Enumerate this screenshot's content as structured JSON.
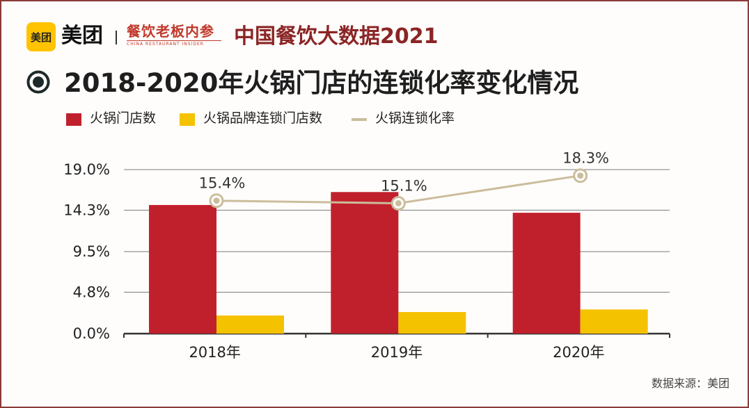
{
  "header": {
    "logo_badge": "美团",
    "logo_text": "美团",
    "brand2_main": "餐饮老板内参",
    "brand2_sub": "CHINA RESTAURANT INSIDER",
    "title": "中国餐饮大数据2021"
  },
  "chart_data": {
    "type": "bar",
    "title": "2018-2020年火锅门店的连锁化率变化情况",
    "categories": [
      "2018年",
      "2019年",
      "2020年"
    ],
    "series": [
      {
        "name": "火锅门店数",
        "kind": "bar",
        "color": "#c0202c",
        "values": [
          14.9,
          16.4,
          14.0
        ]
      },
      {
        "name": "火锅品牌连锁门店数",
        "kind": "bar",
        "color": "#f5c200",
        "values": [
          2.1,
          2.5,
          2.8
        ]
      },
      {
        "name": "火锅连锁化率",
        "kind": "line",
        "color": "#cbbd9c",
        "values": [
          15.4,
          15.1,
          18.3
        ],
        "labels": [
          "15.4%",
          "15.1%",
          "18.3%"
        ]
      }
    ],
    "yticks": [
      0.0,
      4.8,
      9.5,
      14.3,
      19.0
    ],
    "ytick_labels": [
      "0.0%",
      "4.8%",
      "9.5%",
      "14.3%",
      "19.0%"
    ],
    "ylim": [
      0,
      19.0
    ],
    "grid": true,
    "legend": "top-left"
  },
  "footer": {
    "source": "数据来源：美团"
  }
}
